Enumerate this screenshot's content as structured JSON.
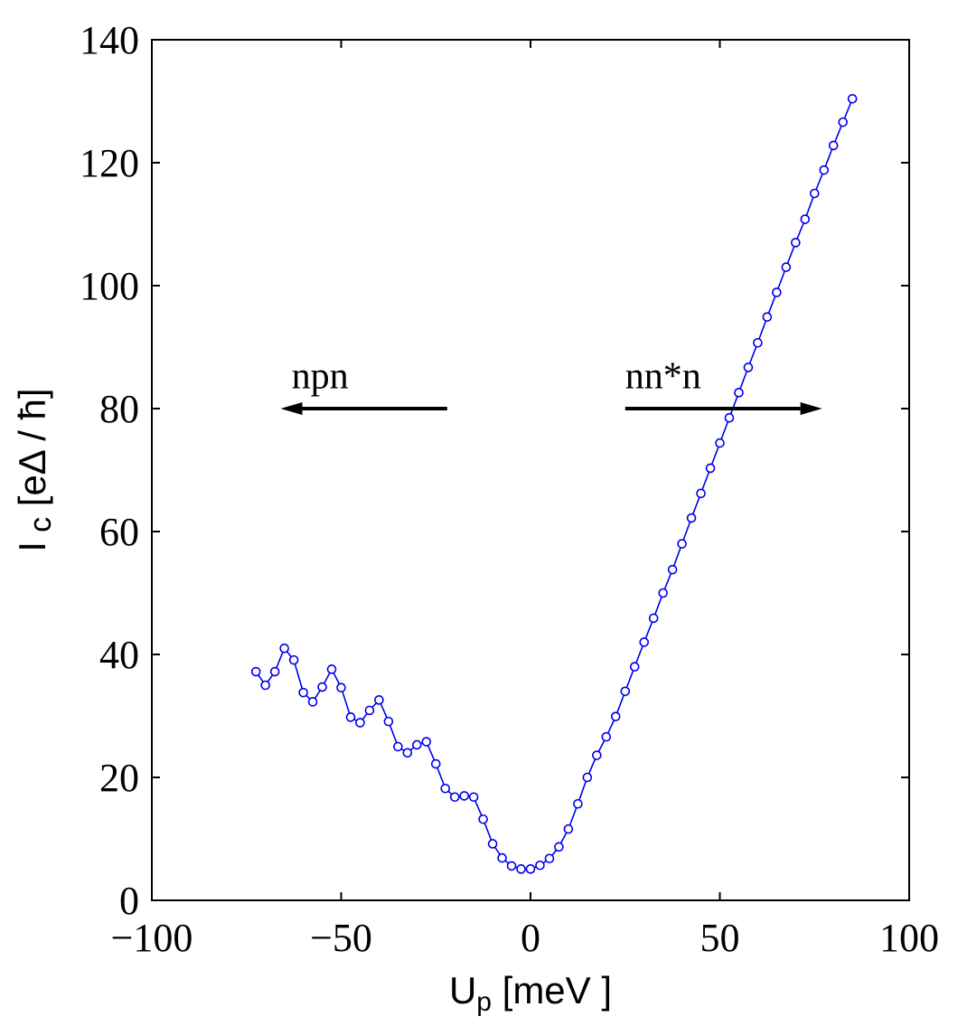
{
  "chart_data": {
    "type": "line",
    "title": "",
    "xlabel": "U",
    "xlabel_sub": "p",
    "xlabel_unit": " [meV ]",
    "ylabel": "I",
    "ylabel_sub": "c",
    "ylabel_unit": " [eΔ / ħ]",
    "xlim": [
      -100,
      100
    ],
    "ylim": [
      0,
      140
    ],
    "xticks": [
      -100,
      -50,
      0,
      50,
      100
    ],
    "xtick_labels": [
      "−100",
      "−50",
      "0",
      "50",
      "100"
    ],
    "yticks": [
      0,
      20,
      40,
      60,
      80,
      100,
      120,
      140
    ],
    "ytick_labels": [
      "0",
      "20",
      "40",
      "60",
      "80",
      "100",
      "120",
      "140"
    ],
    "grid": false,
    "series": [
      {
        "name": "I_c",
        "color": "#0000ee",
        "marker": "open-circle",
        "x": [
          -72.5,
          -70,
          -67.5,
          -65,
          -62.5,
          -60,
          -57.5,
          -55,
          -52.5,
          -50,
          -47.5,
          -45,
          -42.5,
          -40,
          -37.5,
          -35,
          -32.5,
          -30,
          -27.5,
          -25,
          -22.5,
          -20,
          -17.5,
          -15,
          -12.5,
          -10,
          -7.5,
          -5,
          -2.5,
          0,
          2.5,
          5,
          7.5,
          10,
          12.5,
          15,
          17.5,
          20,
          22.5,
          25,
          27.5,
          30,
          32.5,
          35,
          37.5,
          40,
          42.5,
          45,
          47.5,
          50,
          52.5,
          55,
          57.5,
          60,
          62.5,
          65,
          67.5,
          70,
          72.5,
          75,
          77.5,
          80,
          82.5,
          85
        ],
        "y": [
          37.2,
          35.0,
          37.2,
          41.0,
          39.1,
          33.8,
          32.3,
          34.7,
          37.6,
          34.6,
          29.8,
          28.9,
          30.9,
          32.6,
          29.1,
          25.0,
          24.0,
          25.3,
          25.8,
          22.2,
          18.2,
          16.8,
          17.0,
          16.8,
          13.2,
          9.2,
          6.9,
          5.6,
          5.1,
          5.1,
          5.7,
          6.8,
          8.7,
          11.6,
          15.7,
          20.0,
          23.6,
          26.6,
          29.9,
          34.0,
          38.0,
          42.0,
          45.9,
          50.0,
          53.8,
          58.0,
          62.2,
          66.2,
          70.3,
          74.4,
          78.5,
          82.6,
          86.7,
          90.7,
          94.9,
          98.9,
          103.0,
          107.0,
          110.8,
          115.0,
          118.8,
          122.8,
          126.6,
          130.4
        ]
      }
    ],
    "annotations": [
      {
        "text": "npn",
        "x": -65,
        "y": 83,
        "arrow_from_x": -22,
        "arrow_to_x": -66,
        "arrow_y": 80
      },
      {
        "text": "nn*n",
        "x": 25,
        "y": 83,
        "arrow_from_x": 25,
        "arrow_to_x": 77,
        "arrow_y": 80
      }
    ]
  }
}
